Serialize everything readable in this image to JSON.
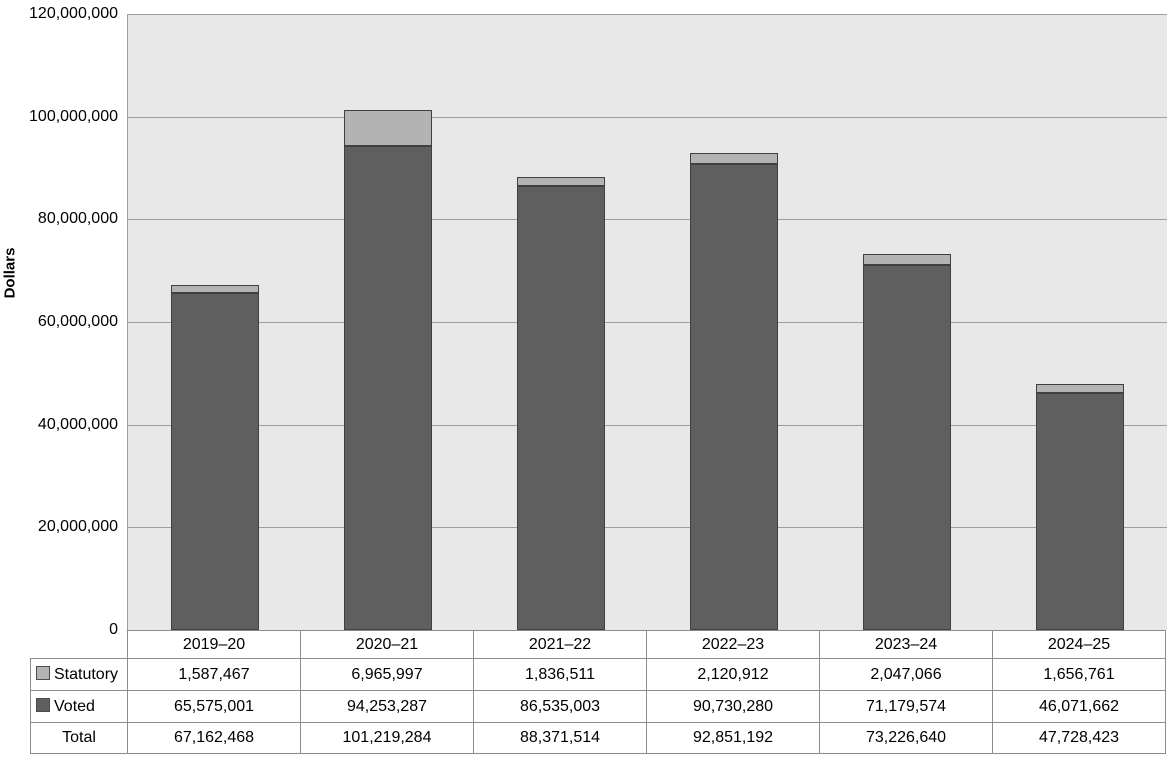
{
  "chart_data": {
    "type": "bar",
    "stacked": true,
    "title": "",
    "categories": [
      "2019–20",
      "2020–21",
      "2021–22",
      "2022–23",
      "2023–24",
      "2024–25"
    ],
    "series": [
      {
        "name": "Voted",
        "color": "#5f5f5f",
        "values": [
          65575001,
          94253287,
          86535003,
          90730280,
          71179574,
          46071662
        ]
      },
      {
        "name": "Statutory",
        "color": "#b3b3b3",
        "values": [
          1587467,
          6965997,
          1836511,
          2120912,
          2047066,
          1656761
        ]
      }
    ],
    "totals": [
      67162468,
      101219284,
      88371514,
      92851192,
      73226640,
      47728423
    ],
    "xlabel": "",
    "ylabel": "Dollars",
    "ylim": [
      0,
      120000000
    ],
    "ytick_step": 20000000,
    "ytick_labels": [
      "0",
      "20,000,000",
      "40,000,000",
      "60,000,000",
      "80,000,000",
      "100,000,000",
      "120,000,000"
    ],
    "grid": true,
    "legend_position": "table rows below chart"
  },
  "table": {
    "header_years": [
      "2019–20",
      "2020–21",
      "2021–22",
      "2022–23",
      "2023–24",
      "2024–25"
    ],
    "rows": [
      {
        "label": "Statutory",
        "swatch_color": "#b3b3b3",
        "values": [
          "1,587,467",
          "6,965,997",
          "1,836,511",
          "2,120,912",
          "2,047,066",
          "1,656,761"
        ]
      },
      {
        "label": "Voted",
        "swatch_color": "#5f5f5f",
        "values": [
          "65,575,001",
          "94,253,287",
          "86,535,003",
          "90,730,280",
          "71,179,574",
          "46,071,662"
        ]
      },
      {
        "label": "Total",
        "swatch_color": null,
        "values": [
          "67,162,468",
          "101,219,284",
          "88,371,514",
          "92,851,192",
          "73,226,640",
          "47,728,423"
        ]
      }
    ]
  },
  "colors": {
    "plot_bg": "#e8e8e8",
    "gridline": "#9e9e9e",
    "axis_line": "#9e9e9e",
    "bar_border": "#404040",
    "table_border": "#8c8c8c",
    "voted_fill": "#5f5f5f",
    "statutory_fill": "#b3b3b3",
    "text": "#000000"
  }
}
